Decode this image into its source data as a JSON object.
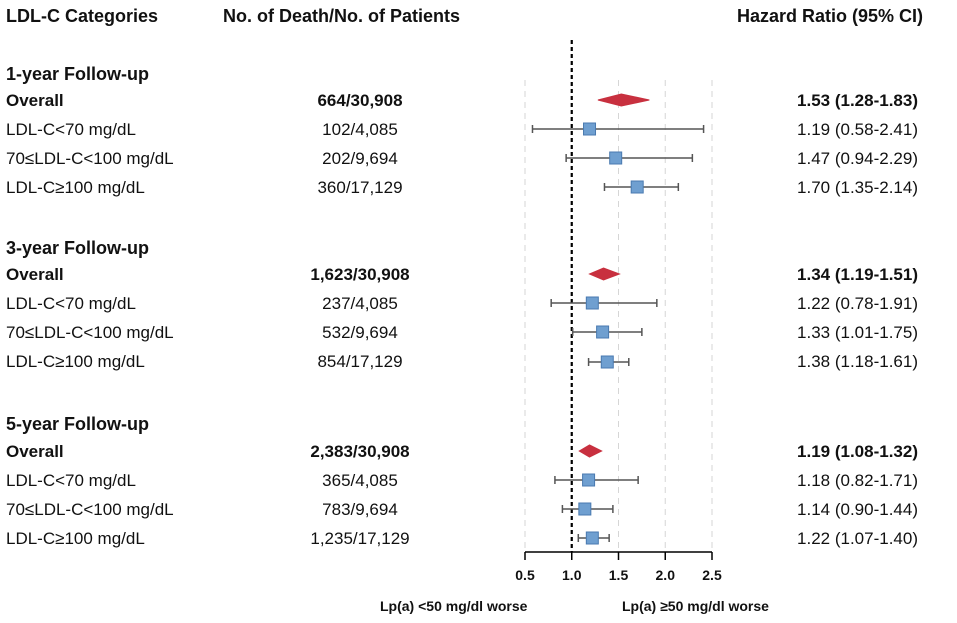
{
  "headers": {
    "category": "LDL-C Categories",
    "counts": "No. of Death/No. of Patients",
    "hazard": "Hazard Ratio (95% CI)"
  },
  "sections": [
    {
      "title": "1-year Follow-up"
    },
    {
      "title": "3-year Follow-up"
    },
    {
      "title": "5-year Follow-up"
    }
  ],
  "rows": [
    {
      "category": "Overall",
      "counts": "664/30,908",
      "hr_text": "1.53 (1.28-1.83)"
    },
    {
      "category": "LDL-C<70 mg/dL",
      "counts": "102/4,085",
      "hr_text": "1.19 (0.58-2.41)"
    },
    {
      "category": "70≤LDL-C<100 mg/dL",
      "counts": "202/9,694",
      "hr_text": "1.47 (0.94-2.29)"
    },
    {
      "category": "LDL-C≥100 mg/dL",
      "counts": "360/17,129",
      "hr_text": "1.70 (1.35-2.14)"
    },
    {
      "category": "Overall",
      "counts": "1,623/30,908",
      "hr_text": "1.34 (1.19-1.51)"
    },
    {
      "category": "LDL-C<70 mg/dL",
      "counts": "237/4,085",
      "hr_text": "1.22 (0.78-1.91)"
    },
    {
      "category": "70≤LDL-C<100 mg/dL",
      "counts": "532/9,694",
      "hr_text": "1.33 (1.01-1.75)"
    },
    {
      "category": "LDL-C≥100 mg/dL",
      "counts": "854/17,129",
      "hr_text": "1.38 (1.18-1.61)"
    },
    {
      "category": "Overall",
      "counts": "2,383/30,908",
      "hr_text": "1.19 (1.08-1.32)"
    },
    {
      "category": "LDL-C<70 mg/dL",
      "counts": "365/4,085",
      "hr_text": "1.18 (0.82-1.71)"
    },
    {
      "category": "70≤LDL-C<100 mg/dL",
      "counts": "783/9,694",
      "hr_text": "1.14 (0.90-1.44)"
    },
    {
      "category": "LDL-C≥100 mg/dL",
      "counts": "1,235/17,129",
      "hr_text": "1.22 (1.07-1.40)"
    }
  ],
  "axis": {
    "ticks": [
      0.5,
      1.0,
      1.5,
      2.0,
      2.5
    ],
    "tick_labels": [
      "0.5",
      "1.0",
      "1.5",
      "2.0",
      "2.5"
    ],
    "reference": 1.0,
    "left_label": "Lp(a) <50 mg/dl worse",
    "right_label": "Lp(a) ≥50 mg/dl worse"
  },
  "colors": {
    "diamond": "#c8303f",
    "square": "#6f9fd0",
    "square_border": "#4a7ab0",
    "ci_line": "#555555",
    "grid": "#d6d6d6"
  },
  "chart_data": {
    "type": "forest",
    "title": "Hazard Ratio (95% CI)",
    "xlabel": "",
    "xlim": [
      0.5,
      2.5
    ],
    "reference_line": 1.0,
    "grid": true,
    "groups": [
      {
        "name": "1-year Follow-up",
        "estimates": [
          {
            "label": "Overall",
            "hr": 1.53,
            "lo": 1.28,
            "hi": 1.83,
            "shape": "diamond"
          },
          {
            "label": "LDL-C<70 mg/dL",
            "hr": 1.19,
            "lo": 0.58,
            "hi": 2.41,
            "shape": "square"
          },
          {
            "label": "70≤LDL-C<100 mg/dL",
            "hr": 1.47,
            "lo": 0.94,
            "hi": 2.29,
            "shape": "square"
          },
          {
            "label": "LDL-C≥100 mg/dL",
            "hr": 1.7,
            "lo": 1.35,
            "hi": 2.14,
            "shape": "square"
          }
        ]
      },
      {
        "name": "3-year Follow-up",
        "estimates": [
          {
            "label": "Overall",
            "hr": 1.34,
            "lo": 1.19,
            "hi": 1.51,
            "shape": "diamond"
          },
          {
            "label": "LDL-C<70 mg/dL",
            "hr": 1.22,
            "lo": 0.78,
            "hi": 1.91,
            "shape": "square"
          },
          {
            "label": "70≤LDL-C<100 mg/dL",
            "hr": 1.33,
            "lo": 1.01,
            "hi": 1.75,
            "shape": "square"
          },
          {
            "label": "LDL-C≥100 mg/dL",
            "hr": 1.38,
            "lo": 1.18,
            "hi": 1.61,
            "shape": "square"
          }
        ]
      },
      {
        "name": "5-year Follow-up",
        "estimates": [
          {
            "label": "Overall",
            "hr": 1.19,
            "lo": 1.08,
            "hi": 1.32,
            "shape": "diamond"
          },
          {
            "label": "LDL-C<70 mg/dL",
            "hr": 1.18,
            "lo": 0.82,
            "hi": 1.71,
            "shape": "square"
          },
          {
            "label": "70≤LDL-C<100 mg/dL",
            "hr": 1.14,
            "lo": 0.9,
            "hi": 1.44,
            "shape": "square"
          },
          {
            "label": "LDL-C≥100 mg/dL",
            "hr": 1.22,
            "lo": 1.07,
            "hi": 1.4,
            "shape": "square"
          }
        ]
      }
    ]
  }
}
